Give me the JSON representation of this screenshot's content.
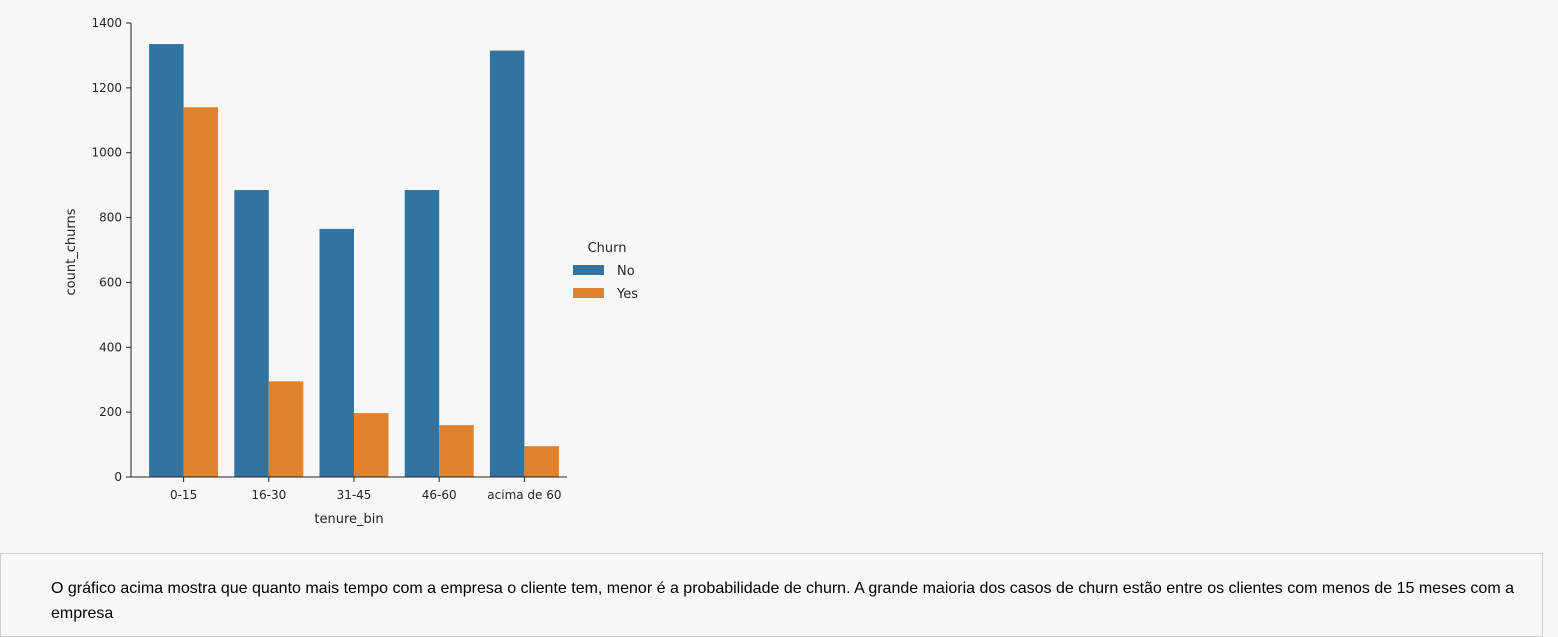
{
  "chart_data": {
    "type": "bar",
    "categories": [
      "0-15",
      "16-30",
      "31-45",
      "46-60",
      "acima de 60"
    ],
    "series": [
      {
        "name": "No",
        "values": [
          1335,
          885,
          765,
          885,
          1315
        ],
        "color": "#3274a1"
      },
      {
        "name": "Yes",
        "values": [
          1140,
          295,
          197,
          160,
          95
        ],
        "color": "#e1812c"
      }
    ],
    "xlabel": "tenure_bin",
    "ylabel": "count_churns",
    "ylim": [
      0,
      1400
    ],
    "yticks": [
      0,
      200,
      400,
      600,
      800,
      1000,
      1200,
      1400
    ],
    "legend": {
      "title": "Churn",
      "placement": "right"
    },
    "grid": false
  },
  "markdown": {
    "text": "O gráfico acima mostra que quanto mais tempo com a empresa o cliente tem, menor é a probabilidade de churn. A grande maioria dos casos de churn estão entre os clientes com menos de 15 meses com a empresa"
  }
}
